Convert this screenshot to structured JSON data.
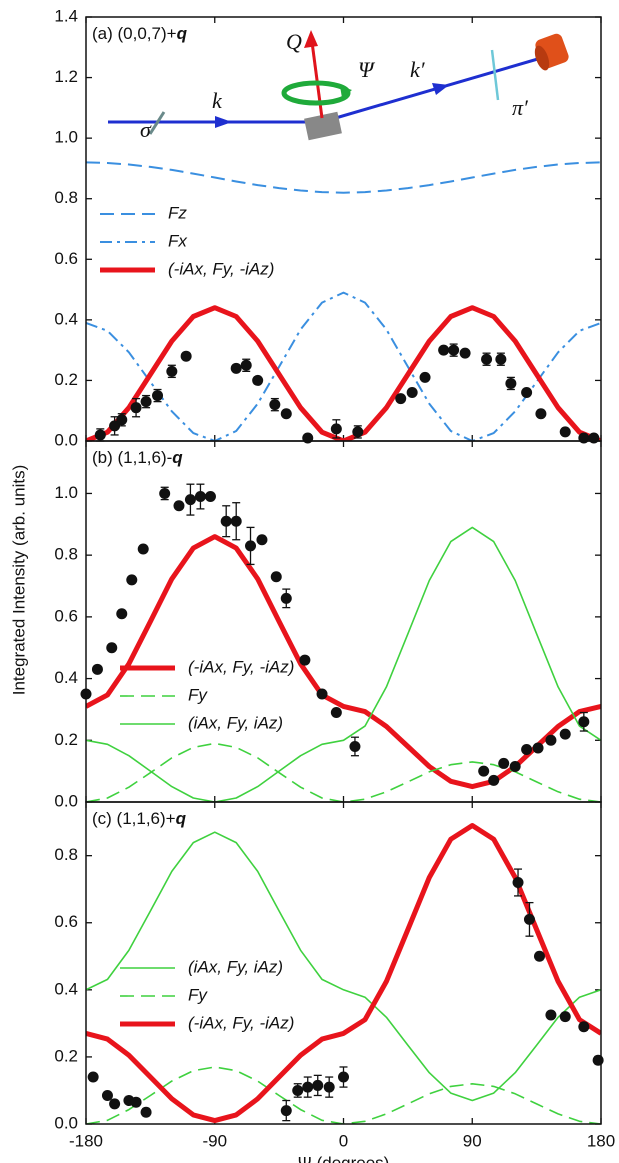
{
  "chart_data": [
    {
      "type": "line",
      "label": "(a) (0,0,7)+",
      "label_q": "q",
      "x": [
        -180,
        -165,
        -150,
        -135,
        -120,
        -105,
        -90,
        -75,
        -60,
        -45,
        -30,
        -15,
        0,
        15,
        30,
        45,
        60,
        75,
        90,
        105,
        120,
        135,
        150,
        165,
        180
      ],
      "xlim": [
        -180,
        180
      ],
      "xticks": [
        -180,
        -90,
        0,
        90,
        180
      ],
      "ylim": [
        0,
        1.4
      ],
      "yticks": [
        0.0,
        0.2,
        0.4,
        0.6,
        0.8,
        1.0,
        1.2,
        1.4
      ],
      "yticks_labels_fixed": true,
      "series": [
        {
          "name": "Fz",
          "color": "#3a8fe0",
          "dash": "dash",
          "width": 2,
          "values": [
            0.92,
            0.918,
            0.913,
            0.905,
            0.895,
            0.883,
            0.87,
            0.857,
            0.845,
            0.835,
            0.827,
            0.822,
            0.82,
            0.822,
            0.827,
            0.835,
            0.845,
            0.857,
            0.87,
            0.883,
            0.895,
            0.905,
            0.913,
            0.918,
            0.92
          ]
        },
        {
          "name": "Fx",
          "color": "#3a8fe0",
          "dash": "dashdot",
          "width": 2,
          "values": [
            0.39,
            0.364,
            0.293,
            0.195,
            0.098,
            0.026,
            0,
            0.033,
            0.123,
            0.245,
            0.368,
            0.457,
            0.49,
            0.457,
            0.368,
            0.245,
            0.123,
            0.033,
            0,
            0.026,
            0.098,
            0.195,
            0.293,
            0.364,
            0.39
          ]
        },
        {
          "name": "(-iAx, Fy, -iAz)",
          "color": "#e8141c",
          "dash": "solid",
          "width": 5,
          "values": [
            0,
            0.029,
            0.11,
            0.22,
            0.33,
            0.411,
            0.44,
            0.411,
            0.33,
            0.22,
            0.11,
            0.029,
            0,
            0.029,
            0.11,
            0.22,
            0.33,
            0.411,
            0.44,
            0.411,
            0.33,
            0.22,
            0.11,
            0.029,
            0
          ]
        }
      ],
      "points": {
        "color": "#111111",
        "x": [
          -170,
          -160,
          -155,
          -145,
          -138,
          -130,
          -120,
          -110,
          -75,
          -68,
          -60,
          -48,
          -40,
          -25,
          -5,
          10,
          40,
          48,
          57,
          70,
          77,
          85,
          100,
          110,
          117,
          128,
          138,
          155,
          168,
          175
        ],
        "values": [
          0.02,
          0.05,
          0.07,
          0.11,
          0.13,
          0.15,
          0.23,
          0.28,
          0.24,
          0.25,
          0.2,
          0.12,
          0.09,
          0.01,
          0.04,
          0.03,
          0.14,
          0.16,
          0.21,
          0.3,
          0.3,
          0.29,
          0.27,
          0.27,
          0.19,
          0.16,
          0.09,
          0.03,
          0.01,
          0.01
        ],
        "errors": [
          0.02,
          0.03,
          0.02,
          0.03,
          0.02,
          0.02,
          0.02,
          0.01,
          0.01,
          0.02,
          0.01,
          0.02,
          0.01,
          0.01,
          0.03,
          0.02,
          0.01,
          0.01,
          0.01,
          0.01,
          0.02,
          0.01,
          0.02,
          0.02,
          0.02,
          0.01,
          0.01,
          0.01,
          0.01,
          0.01
        ]
      },
      "annotations": [
        "Q",
        "Ψ",
        "k",
        "k′",
        "π′",
        "σ"
      ]
    },
    {
      "type": "line",
      "label": "(b) (1,1,6)-",
      "label_q": "q",
      "y_label": "Integrated Intensity (arb. units)",
      "x": [
        -180,
        -165,
        -150,
        -135,
        -120,
        -105,
        -90,
        -75,
        -60,
        -45,
        -30,
        -15,
        0,
        15,
        30,
        45,
        60,
        75,
        90,
        105,
        120,
        135,
        150,
        165,
        180
      ],
      "xlim": [
        -180,
        180
      ],
      "xticks": [
        -180,
        -90,
        0,
        90,
        180
      ],
      "ylim": [
        0,
        1.17
      ],
      "yticks": [
        0.0,
        0.2,
        0.4,
        0.6,
        0.8,
        1.0
      ],
      "series": [
        {
          "name": "(-iAx, Fy, -iAz)",
          "color": "#e8141c",
          "dash": "solid",
          "width": 5,
          "values": [
            0.31,
            0.347,
            0.448,
            0.585,
            0.723,
            0.823,
            0.86,
            0.823,
            0.723,
            0.585,
            0.448,
            0.347,
            0.31,
            0.293,
            0.245,
            0.18,
            0.115,
            0.067,
            0.05,
            0.067,
            0.115,
            0.18,
            0.245,
            0.293,
            0.31
          ]
        },
        {
          "name": "Fy",
          "color": "#3fd13f",
          "dash": "dash",
          "width": 1.6,
          "values": [
            0,
            0.013,
            0.048,
            0.095,
            0.143,
            0.177,
            0.19,
            0.177,
            0.143,
            0.095,
            0.048,
            0.013,
            0,
            0.009,
            0.033,
            0.065,
            0.098,
            0.121,
            0.13,
            0.121,
            0.098,
            0.065,
            0.033,
            0.009,
            0
          ]
        },
        {
          "name": "(iAx, Fy, iAz)",
          "color": "#3fd13f",
          "dash": "solid",
          "width": 1.6,
          "values": [
            0.2,
            0.187,
            0.15,
            0.1,
            0.05,
            0.013,
            0,
            0.013,
            0.05,
            0.1,
            0.15,
            0.187,
            0.2,
            0.246,
            0.373,
            0.545,
            0.718,
            0.844,
            0.89,
            0.844,
            0.718,
            0.545,
            0.373,
            0.246,
            0.2
          ]
        }
      ],
      "points": {
        "color": "#111111",
        "x": [
          -180,
          -172,
          -162,
          -155,
          -148,
          -140,
          -125,
          -115,
          -107,
          -100,
          -93,
          -82,
          -75,
          -65,
          -57,
          -47,
          -40,
          -27,
          -15,
          -5,
          8,
          98,
          105,
          112,
          120,
          128,
          136,
          145,
          155,
          168
        ],
        "values": [
          0.35,
          0.43,
          0.5,
          0.61,
          0.72,
          0.82,
          1.0,
          0.96,
          0.98,
          0.99,
          0.99,
          0.91,
          0.91,
          0.83,
          0.85,
          0.73,
          0.66,
          0.46,
          0.35,
          0.29,
          0.18,
          0.1,
          0.07,
          0.125,
          0.115,
          0.17,
          0.175,
          0.2,
          0.22,
          0.26
        ],
        "errors": [
          0.01,
          0.01,
          0.01,
          0.01,
          0.01,
          0.01,
          0.02,
          0.01,
          0.05,
          0.04,
          0.01,
          0.05,
          0.06,
          0.06,
          0.01,
          0.01,
          0.03,
          0.01,
          0.01,
          0.01,
          0.03,
          0.01,
          0.01,
          0.01,
          0.01,
          0.01,
          0.01,
          0.01,
          0.01,
          0.03
        ]
      }
    },
    {
      "type": "line",
      "label": "(c) (1,1,6)+",
      "label_q": "q",
      "x_label": "Ψ (degrees)",
      "x": [
        -180,
        -165,
        -150,
        -135,
        -120,
        -105,
        -90,
        -75,
        -60,
        -45,
        -30,
        -15,
        0,
        15,
        30,
        45,
        60,
        75,
        90,
        105,
        120,
        135,
        150,
        165,
        180
      ],
      "xlim": [
        -180,
        180
      ],
      "xticks": [
        -180,
        -90,
        0,
        90,
        180
      ],
      "ylim": [
        0,
        0.96
      ],
      "yticks": [
        0.0,
        0.2,
        0.4,
        0.6,
        0.8
      ],
      "series": [
        {
          "name": "(iAx, Fy, iAz)",
          "color": "#3fd13f",
          "dash": "solid",
          "width": 1.6,
          "values": [
            0.4,
            0.431,
            0.518,
            0.635,
            0.753,
            0.839,
            0.87,
            0.839,
            0.753,
            0.635,
            0.518,
            0.431,
            0.4,
            0.378,
            0.318,
            0.235,
            0.153,
            0.092,
            0.07,
            0.092,
            0.153,
            0.235,
            0.318,
            0.378,
            0.4
          ]
        },
        {
          "name": "Fy",
          "color": "#3fd13f",
          "dash": "dash",
          "width": 1.6,
          "values": [
            0,
            0.011,
            0.043,
            0.085,
            0.128,
            0.159,
            0.17,
            0.159,
            0.128,
            0.085,
            0.043,
            0.011,
            0,
            0.008,
            0.03,
            0.06,
            0.09,
            0.112,
            0.12,
            0.112,
            0.09,
            0.06,
            0.03,
            0.008,
            0
          ]
        },
        {
          "name": "(-iAx, Fy, -iAz)",
          "color": "#e8141c",
          "dash": "solid",
          "width": 5,
          "values": [
            0.27,
            0.253,
            0.205,
            0.14,
            0.075,
            0.027,
            0.01,
            0.027,
            0.075,
            0.14,
            0.205,
            0.253,
            0.27,
            0.311,
            0.425,
            0.58,
            0.735,
            0.849,
            0.89,
            0.849,
            0.735,
            0.58,
            0.425,
            0.311,
            0.27
          ]
        }
      ],
      "points": {
        "color": "#111111",
        "x": [
          -175,
          -165,
          -160,
          -150,
          -145,
          -138,
          -40,
          -32,
          -25,
          -18,
          -10,
          0,
          122,
          130,
          137,
          145,
          155,
          168,
          178
        ],
        "values": [
          0.14,
          0.085,
          0.06,
          0.07,
          0.065,
          0.035,
          0.04,
          0.1,
          0.11,
          0.115,
          0.11,
          0.14,
          0.72,
          0.61,
          0.5,
          0.325,
          0.32,
          0.29,
          0.19
        ],
        "errors": [
          0.01,
          0.01,
          0.01,
          0.01,
          0.01,
          0.01,
          0.03,
          0.02,
          0.03,
          0.03,
          0.03,
          0.03,
          0.04,
          0.05,
          0.01,
          0.01,
          0.01,
          0.01,
          0.01
        ]
      }
    }
  ]
}
